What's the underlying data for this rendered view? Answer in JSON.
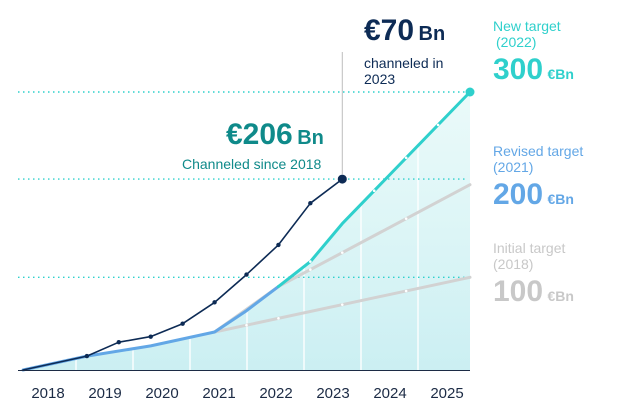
{
  "chart_data": {
    "type": "line",
    "x": [
      2018,
      2019,
      2020,
      2021,
      2022,
      2023,
      2024,
      2025
    ],
    "xlim": [
      2018,
      2025
    ],
    "ylim": [
      0,
      300
    ],
    "grid": false,
    "series": [
      {
        "key": "channeled",
        "color": "#0d2b55",
        "points": [
          [
            2018,
            0
          ],
          [
            2019,
            15
          ],
          [
            2019.5,
            30
          ],
          [
            2020,
            36
          ],
          [
            2020.5,
            50
          ],
          [
            2021,
            73
          ],
          [
            2021.5,
            103
          ],
          [
            2022,
            135
          ],
          [
            2022.5,
            180
          ],
          [
            2023,
            206
          ]
        ]
      },
      {
        "key": "initial",
        "color": "#d2d2d2",
        "points": [
          [
            2021,
            41
          ],
          [
            2025,
            100
          ]
        ]
      },
      {
        "key": "revised",
        "color": "#d2d2d2",
        "points": [
          [
            2021,
            41
          ],
          [
            2022,
            90
          ],
          [
            2025,
            200
          ]
        ]
      },
      {
        "key": "revised_actual",
        "color": "#63a7e6",
        "points": [
          [
            2018,
            0
          ],
          [
            2019,
            15
          ],
          [
            2020,
            26
          ],
          [
            2021,
            41
          ],
          [
            2021.5,
            64
          ],
          [
            2022,
            90
          ]
        ]
      },
      {
        "key": "new",
        "color": "#2fd0cc",
        "points": [
          [
            2022,
            90
          ],
          [
            2022.5,
            117
          ],
          [
            2023,
            158
          ],
          [
            2025,
            300
          ]
        ]
      }
    ],
    "target_lines": [
      {
        "y": 300,
        "color": "#2fd0cc"
      },
      {
        "y": 206,
        "color": "#2fd0cc"
      },
      {
        "y": 100,
        "color": "#2fd0cc"
      }
    ],
    "annotations": {
      "channeled_total": {
        "value": "€206",
        "unit": "Bn",
        "text": "Channeled since 2018"
      },
      "channeled_2023": {
        "value": "€70",
        "unit": "Bn",
        "text_line1": "channeled in",
        "text_line2": "2023"
      }
    },
    "targets": [
      {
        "name_line1": "New target",
        "name_line2": "(2022)",
        "value": "300",
        "unit": "€Bn",
        "color": "#2fd0cc"
      },
      {
        "name_line1": "Revised target",
        "name_line2": "(2021)",
        "value": "200",
        "unit": "€Bn",
        "color": "#63a7e6"
      },
      {
        "name_line1": "Initial target",
        "name_line2": "(2018)",
        "value": "100",
        "unit": "€Bn",
        "color": "#c8c8c8"
      }
    ]
  }
}
